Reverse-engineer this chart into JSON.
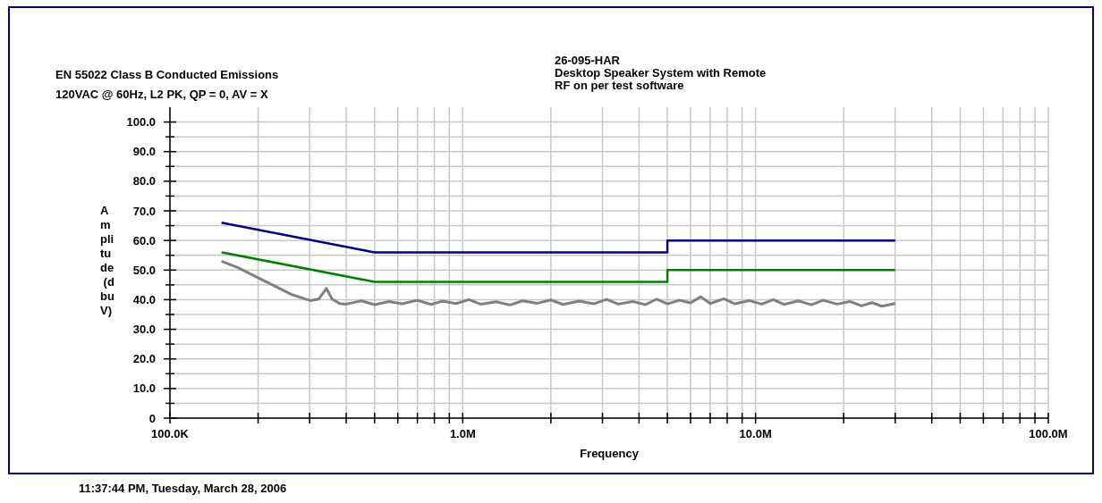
{
  "chart_data": {
    "type": "line",
    "title": "EN 55022 Class B Conducted Emissions",
    "subtitle": "120VAC @ 60Hz, L2 PK, QP = 0, AV = X",
    "xlabel": "Frequency",
    "ylabel": "Amplitude (dbuV)",
    "annotations": [
      "26-095-HAR",
      "Desktop Speaker System with Remote",
      "RF on per test software",
      "11:37:44 PM, Tuesday, March 28, 2006"
    ],
    "log": "x",
    "grid": true,
    "marker": "none",
    "line_style": "solid",
    "xlim": [
      100000,
      100000000
    ],
    "ylim": [
      0,
      105
    ],
    "xticks": [
      {
        "value": 100000,
        "label": "100.0K"
      },
      {
        "value": 200000,
        "label": null
      },
      {
        "value": 300000,
        "label": null
      },
      {
        "value": 400000,
        "label": null
      },
      {
        "value": 500000,
        "label": null
      },
      {
        "value": 600000,
        "label": null
      },
      {
        "value": 700000,
        "label": null
      },
      {
        "value": 800000,
        "label": null
      },
      {
        "value": 900000,
        "label": null
      },
      {
        "value": 1000000,
        "label": "1.0M"
      },
      {
        "value": 2000000,
        "label": null
      },
      {
        "value": 3000000,
        "label": null
      },
      {
        "value": 4000000,
        "label": null
      },
      {
        "value": 5000000,
        "label": null
      },
      {
        "value": 6000000,
        "label": null
      },
      {
        "value": 7000000,
        "label": null
      },
      {
        "value": 8000000,
        "label": null
      },
      {
        "value": 9000000,
        "label": null
      },
      {
        "value": 10000000,
        "label": "10.0M"
      },
      {
        "value": 20000000,
        "label": null
      },
      {
        "value": 30000000,
        "label": null
      },
      {
        "value": 40000000,
        "label": null
      },
      {
        "value": 50000000,
        "label": null
      },
      {
        "value": 60000000,
        "label": null
      },
      {
        "value": 70000000,
        "label": null
      },
      {
        "value": 80000000,
        "label": null
      },
      {
        "value": 90000000,
        "label": null
      },
      {
        "value": 100000000,
        "label": "100.0M"
      }
    ],
    "yticks": [
      0,
      {
        "value": 5,
        "label": null
      },
      {
        "value": 10,
        "label": "10.0"
      },
      {
        "value": 15,
        "label": null
      },
      {
        "value": 20,
        "label": "20.0"
      },
      {
        "value": 25,
        "label": null
      },
      {
        "value": 30,
        "label": "30.0"
      },
      {
        "value": 35,
        "label": null
      },
      {
        "value": 40,
        "label": "40.0"
      },
      {
        "value": 45,
        "label": null
      },
      {
        "value": 50,
        "label": "50.0"
      },
      {
        "value": 55,
        "label": null
      },
      {
        "value": 60,
        "label": "60.0"
      },
      {
        "value": 65,
        "label": null
      },
      {
        "value": 70,
        "label": "70.0"
      },
      {
        "value": 75,
        "label": null
      },
      {
        "value": 80,
        "label": "80.0"
      },
      {
        "value": 85,
        "label": null
      },
      {
        "value": 90,
        "label": "90.0"
      },
      {
        "value": 95,
        "label": null
      },
      {
        "value": 100,
        "label": "100.0"
      }
    ],
    "series": [
      {
        "color": "#000080",
        "x": [
          150000,
          500000,
          5000000,
          5000000,
          30000000
        ],
        "values": [
          66,
          56,
          56,
          60,
          60
        ]
      },
      {
        "color": "#008000",
        "x": [
          150000,
          500000,
          5000000,
          5000000,
          30000000
        ],
        "values": [
          56,
          46,
          46,
          50,
          50
        ]
      },
      {
        "color": "#808080",
        "x": [
          150000,
          171000,
          197000,
          227000,
          261000,
          301000,
          322000,
          342000,
          358000,
          380000,
          400000,
          450000,
          500000,
          560000,
          620000,
          700000,
          780000,
          850000,
          950000,
          1050000,
          1150000,
          1300000,
          1450000,
          1600000,
          1800000,
          2000000,
          2200000,
          2500000,
          2800000,
          3100000,
          3400000,
          3800000,
          4200000,
          4600000,
          5000000,
          5500000,
          6000000,
          6500000,
          7000000,
          7800000,
          8500000,
          9500000,
          10500000,
          11500000,
          12500000,
          14000000,
          15500000,
          17000000,
          19000000,
          21000000,
          23000000,
          25000000,
          27000000,
          30000000
        ],
        "values": [
          53,
          50.8,
          47.7,
          44.7,
          41.7,
          39.7,
          40.2,
          43.8,
          40.2,
          38.7,
          38.5,
          39.6,
          38.3,
          39.4,
          38.6,
          39.8,
          38.4,
          39.5,
          38.7,
          40,
          38.5,
          39.3,
          38.2,
          39.6,
          38.8,
          39.9,
          38.4,
          39.5,
          38.6,
          40.1,
          38.5,
          39.4,
          38.3,
          40.2,
          38.6,
          39.8,
          38.9,
          41,
          38.7,
          40.3,
          38.6,
          39.7,
          38.5,
          40,
          38.4,
          39.6,
          38.3,
          39.8,
          38.5,
          39.4,
          37.9,
          39,
          37.8,
          38.7
        ]
      }
    ]
  }
}
